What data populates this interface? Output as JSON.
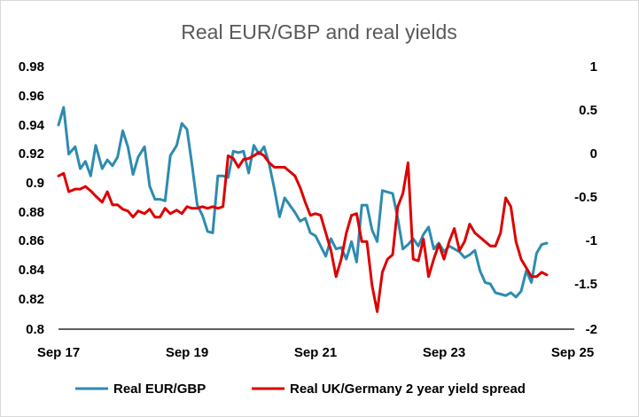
{
  "chart_data": {
    "type": "line",
    "title": "Real EUR/GBP and real yields",
    "x_ticks": [
      "Sep 17",
      "Sep 19",
      "Sep 21",
      "Sep 23",
      "Sep 25"
    ],
    "y_left_ticks": [
      "0.98",
      "0.96",
      "0.94",
      "0.92",
      "0.9",
      "0.88",
      "0.86",
      "0.84",
      "0.82",
      "0.8"
    ],
    "y_left_range": [
      0.8,
      0.98
    ],
    "y_right_ticks": [
      "1",
      "0.5",
      "0",
      "-0.5",
      "-1",
      "-1.5",
      "-2"
    ],
    "y_right_range": [
      -2,
      1
    ],
    "legend_position": "bottom",
    "grid": false,
    "series": [
      {
        "name": "Real EUR/GBP",
        "axis": "left",
        "color": "#2E8BB0",
        "x": [
          2017.7,
          2017.78,
          2017.86,
          2017.96,
          2018.04,
          2018.12,
          2018.2,
          2018.28,
          2018.38,
          2018.46,
          2018.54,
          2018.62,
          2018.7,
          2018.78,
          2018.86,
          2018.94,
          2019.04,
          2019.12,
          2019.2,
          2019.28,
          2019.36,
          2019.44,
          2019.54,
          2019.62,
          2019.7,
          2019.78,
          2019.86,
          2019.94,
          2020.02,
          2020.1,
          2020.18,
          2020.26,
          2020.34,
          2020.42,
          2020.5,
          2020.58,
          2020.66,
          2020.74,
          2020.82,
          2020.9,
          2020.98,
          2021.06,
          2021.14,
          2021.22,
          2021.3,
          2021.38,
          2021.46,
          2021.54,
          2021.62,
          2021.7,
          2021.78,
          2021.86,
          2021.94,
          2022.02,
          2022.1,
          2022.18,
          2022.26,
          2022.34,
          2022.42,
          2022.5,
          2022.58,
          2022.66,
          2022.74,
          2022.82,
          2022.9,
          2022.98,
          2023.06,
          2023.14,
          2023.22,
          2023.3,
          2023.38,
          2023.46,
          2023.54,
          2023.62,
          2023.7,
          2023.78,
          2023.86,
          2023.94,
          2024.02,
          2024.1,
          2024.18,
          2024.26,
          2024.34,
          2024.42,
          2024.5,
          2024.58,
          2024.66,
          2024.74,
          2024.82,
          2024.9,
          2024.98,
          2025.06,
          2025.14,
          2025.22,
          2025.3
        ],
        "values": [
          0.94,
          0.952,
          0.92,
          0.925,
          0.91,
          0.915,
          0.905,
          0.926,
          0.91,
          0.916,
          0.912,
          0.918,
          0.936,
          0.925,
          0.906,
          0.918,
          0.925,
          0.898,
          0.889,
          0.889,
          0.888,
          0.919,
          0.926,
          0.941,
          0.937,
          0.912,
          0.885,
          0.878,
          0.867,
          0.866,
          0.905,
          0.905,
          0.904,
          0.922,
          0.921,
          0.922,
          0.907,
          0.926,
          0.92,
          0.925,
          0.913,
          0.896,
          0.877,
          0.89,
          0.885,
          0.88,
          0.874,
          0.876,
          0.866,
          0.864,
          0.857,
          0.85,
          0.862,
          0.855,
          0.856,
          0.848,
          0.86,
          0.846,
          0.885,
          0.885,
          0.868,
          0.86,
          0.895,
          0.894,
          0.893,
          0.876,
          0.855,
          0.858,
          0.862,
          0.857,
          0.865,
          0.87,
          0.855,
          0.859,
          0.853,
          0.857,
          0.855,
          0.853,
          0.849,
          0.851,
          0.854,
          0.84,
          0.832,
          0.831,
          0.825,
          0.824,
          0.823,
          0.825,
          0.822,
          0.826,
          0.84,
          0.832,
          0.852,
          0.858,
          0.859
        ]
      },
      {
        "name": "Real UK/Germany 2 year yield spread",
        "axis": "right",
        "color": "#DD0000",
        "x": [
          2017.7,
          2017.78,
          2017.86,
          2017.96,
          2018.04,
          2018.12,
          2018.2,
          2018.28,
          2018.38,
          2018.46,
          2018.54,
          2018.62,
          2018.7,
          2018.78,
          2018.86,
          2018.94,
          2019.04,
          2019.12,
          2019.2,
          2019.28,
          2019.36,
          2019.44,
          2019.54,
          2019.62,
          2019.7,
          2019.78,
          2019.86,
          2019.94,
          2020.02,
          2020.1,
          2020.18,
          2020.26,
          2020.34,
          2020.42,
          2020.5,
          2020.58,
          2020.66,
          2020.74,
          2020.82,
          2020.9,
          2020.98,
          2021.06,
          2021.14,
          2021.22,
          2021.3,
          2021.38,
          2021.46,
          2021.54,
          2021.62,
          2021.7,
          2021.78,
          2021.86,
          2021.94,
          2022.02,
          2022.1,
          2022.18,
          2022.26,
          2022.34,
          2022.42,
          2022.5,
          2022.58,
          2022.66,
          2022.74,
          2022.82,
          2022.9,
          2022.98,
          2023.06,
          2023.14,
          2023.22,
          2023.3,
          2023.38,
          2023.46,
          2023.54,
          2023.62,
          2023.7,
          2023.78,
          2023.86,
          2023.94,
          2024.02,
          2024.1,
          2024.18,
          2024.26,
          2024.34,
          2024.42,
          2024.5,
          2024.58,
          2024.66,
          2024.74,
          2024.82,
          2024.9,
          2024.98,
          2025.06,
          2025.14,
          2025.22,
          2025.3
        ],
        "values": [
          -0.25,
          -0.22,
          -0.43,
          -0.4,
          -0.4,
          -0.37,
          -0.42,
          -0.48,
          -0.55,
          -0.43,
          -0.58,
          -0.58,
          -0.63,
          -0.65,
          -0.72,
          -0.65,
          -0.68,
          -0.63,
          -0.72,
          -0.72,
          -0.62,
          -0.68,
          -0.64,
          -0.68,
          -0.6,
          -0.62,
          -0.62,
          -0.6,
          -0.62,
          -0.6,
          -0.62,
          -0.6,
          -0.02,
          -0.05,
          -0.15,
          -0.06,
          -0.05,
          -0.02,
          0.02,
          -0.02,
          -0.1,
          -0.15,
          -0.15,
          -0.15,
          -0.2,
          -0.25,
          -0.38,
          -0.55,
          -0.7,
          -0.68,
          -0.7,
          -0.9,
          -1.1,
          -1.4,
          -1.2,
          -0.9,
          -0.7,
          -0.68,
          -1.0,
          -1.0,
          -1.5,
          -1.8,
          -1.35,
          -1.2,
          -1.15,
          -0.6,
          -0.45,
          -0.1,
          -1.2,
          -1.22,
          -0.97,
          -1.4,
          -1.2,
          -1.03,
          -1.2,
          -1.0,
          -0.85,
          -1.1,
          -1.0,
          -0.8,
          -0.9,
          -0.95,
          -1.0,
          -1.05,
          -1.05,
          -0.9,
          -0.5,
          -0.6,
          -1.0,
          -1.2,
          -1.3,
          -1.4,
          -1.4,
          -1.35,
          -1.38
        ]
      }
    ]
  }
}
